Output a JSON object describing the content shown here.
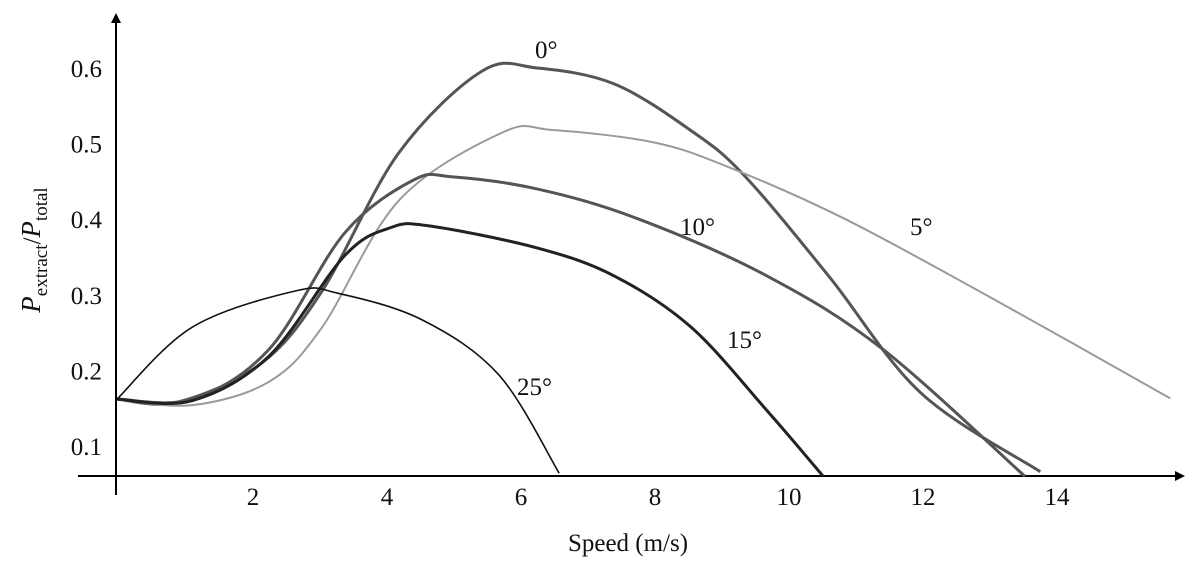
{
  "chart_data": {
    "type": "line",
    "title": "",
    "xlabel": "Speed (m/s)",
    "ylabel": {
      "main": "P",
      "sub1": "extract",
      "sep": "/",
      "main2": "P",
      "sub2": "total"
    },
    "xlim": [
      -0.58,
      15.9
    ],
    "ylim": [
      0.06,
      0.67
    ],
    "x_ticks": [
      2,
      4,
      6,
      8,
      10,
      12,
      14
    ],
    "y_ticks": [
      "0.1",
      "0.2",
      "0.3",
      "0.4",
      "0.5",
      "0.6"
    ],
    "grid": false,
    "legend": "inline labels",
    "series": [
      {
        "name": "0°",
        "color": "#555555",
        "points": [
          [
            0,
            0.162
          ],
          [
            0.9,
            0.158
          ],
          [
            2.15,
            0.209
          ],
          [
            3.06,
            0.305
          ],
          [
            4.2,
            0.487
          ],
          [
            5.45,
            0.596
          ],
          [
            6.27,
            0.6
          ],
          [
            7.42,
            0.579
          ],
          [
            8.57,
            0.517
          ],
          [
            9.36,
            0.458
          ],
          [
            10.63,
            0.324
          ],
          [
            12.0,
            0.17
          ],
          [
            13.78,
            0.066
          ]
        ]
      },
      {
        "name": "5°",
        "color": "#9a9a9a",
        "points": [
          [
            0,
            0.162
          ],
          [
            1.12,
            0.154
          ],
          [
            2.27,
            0.185
          ],
          [
            3.06,
            0.257
          ],
          [
            4.21,
            0.425
          ],
          [
            5.76,
            0.515
          ],
          [
            6.5,
            0.518
          ],
          [
            7.99,
            0.502
          ],
          [
            9.07,
            0.471
          ],
          [
            10.85,
            0.401
          ],
          [
            13.15,
            0.291
          ],
          [
            15.72,
            0.163
          ]
        ]
      },
      {
        "name": "10°",
        "color": "#555555",
        "points": [
          [
            0,
            0.162
          ],
          [
            1.12,
            0.162
          ],
          [
            2.27,
            0.228
          ],
          [
            3.4,
            0.382
          ],
          [
            4.43,
            0.452
          ],
          [
            5.01,
            0.456
          ],
          [
            6.27,
            0.44
          ],
          [
            7.76,
            0.401
          ],
          [
            9.7,
            0.325
          ],
          [
            11.43,
            0.228
          ],
          [
            13.55,
            0.06
          ]
        ]
      },
      {
        "name": "15°",
        "color": "#222222",
        "points": [
          [
            0,
            0.162
          ],
          [
            1.12,
            0.16
          ],
          [
            2.27,
            0.219
          ],
          [
            3.4,
            0.352
          ],
          [
            4.09,
            0.389
          ],
          [
            4.67,
            0.391
          ],
          [
            6.27,
            0.362
          ],
          [
            7.42,
            0.325
          ],
          [
            8.57,
            0.257
          ],
          [
            9.7,
            0.147
          ],
          [
            10.54,
            0.06
          ]
        ]
      },
      {
        "name": "25°",
        "color": "#111111",
        "points": [
          [
            0,
            0.162
          ],
          [
            1.12,
            0.257
          ],
          [
            2.66,
            0.305
          ],
          [
            3.3,
            0.302
          ],
          [
            4.55,
            0.267
          ],
          [
            5.7,
            0.194
          ],
          [
            6.6,
            0.064
          ]
        ]
      }
    ]
  }
}
